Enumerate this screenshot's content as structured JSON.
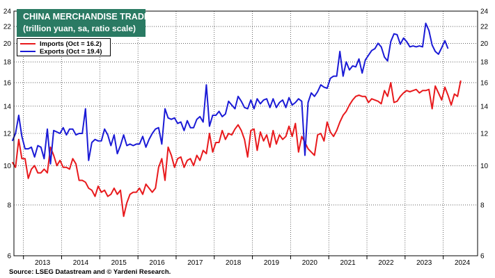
{
  "title": "CHINA MERCHANDISE TRADE",
  "subtitle": "(trillion yuan, sa, ratio scale)",
  "title_bg_color": "#2a7a63",
  "source": "Source: LSEG Datastream and © Yardeni Research.",
  "chart_data": {
    "type": "line",
    "title": "CHINA MERCHANDISE TRADE",
    "subtitle": "(trillion yuan, sa, ratio scale)",
    "y_scale": "log",
    "ylim": [
      6,
      24
    ],
    "y_ticks": [
      6,
      8,
      10,
      12,
      14,
      16,
      18,
      20,
      22,
      24
    ],
    "y_tick_labels": [
      "6",
      "8",
      "10",
      "12",
      "14",
      "16",
      "18",
      "20",
      "22",
      "24"
    ],
    "xlim": [
      2012.75,
      2024.9
    ],
    "x_ticks": [
      "2013",
      "2014",
      "2015",
      "2016",
      "2017",
      "2018",
      "2019",
      "2020",
      "2021",
      "2022",
      "2023",
      "2024"
    ],
    "grid": true,
    "legend_position": "top-left",
    "series": [
      {
        "name": "Imports  (Oct = 16.2)",
        "color": "#e8191c",
        "start_date": "2012-09",
        "values": [
          10.2,
          9.9,
          11.6,
          10.4,
          10.4,
          9.3,
          9.8,
          10.0,
          9.6,
          9.6,
          9.8,
          9.6,
          11.1,
          10.6,
          10.0,
          10.3,
          9.9,
          9.9,
          9.8,
          10.4,
          10.1,
          9.2,
          9.2,
          9.1,
          8.8,
          8.7,
          8.4,
          8.9,
          8.6,
          8.7,
          8.4,
          8.5,
          8.8,
          8.5,
          8.7,
          7.5,
          8.1,
          8.5,
          8.6,
          8.6,
          8.8,
          8.5,
          9.0,
          8.8,
          8.6,
          8.8,
          9.9,
          10.4,
          9.2,
          11.1,
          10.6,
          9.9,
          10.4,
          10.5,
          9.9,
          10.3,
          10.4,
          10.0,
          10.6,
          10.3,
          10.9,
          10.7,
          12.0,
          10.8,
          11.4,
          11.4,
          12.2,
          11.6,
          12.0,
          11.9,
          12.3,
          12.6,
          12.2,
          11.6,
          10.5,
          12.2,
          12.3,
          10.9,
          12.1,
          11.5,
          11.9,
          11.1,
          12.2,
          11.3,
          11.9,
          11.6,
          11.8,
          12.5,
          11.8,
          12.7,
          10.8,
          11.8,
          11.4,
          11.0,
          10.8,
          10.6,
          11.9,
          12.0,
          11.5,
          12.8,
          12.1,
          11.8,
          12.2,
          12.8,
          13.3,
          13.6,
          14.1,
          14.5,
          14.8,
          14.9,
          14.8,
          14.8,
          14.3,
          14.6,
          14.5,
          14.4,
          14.2,
          15.3,
          14.8,
          16.0,
          14.3,
          14.4,
          14.8,
          15.1,
          15.3,
          15.2,
          15.3,
          15.4,
          15.1,
          15.3,
          15.3,
          15.4,
          13.8,
          15.7,
          15.1,
          14.5,
          15.6,
          14.9,
          14.1,
          15.0,
          14.8,
          16.2
        ]
      },
      {
        "name": "Exports  (Oct = 19.4)",
        "color": "#1a1ad6",
        "start_date": "2012-09",
        "values": [
          11.5,
          12.0,
          13.3,
          11.8,
          11.0,
          11.0,
          11.1,
          10.5,
          11.2,
          11.1,
          10.4,
          12.3,
          10.1,
          12.2,
          12.1,
          12.0,
          12.4,
          11.9,
          12.3,
          12.3,
          11.9,
          12.0,
          12.0,
          13.8,
          10.3,
          11.4,
          11.6,
          11.5,
          11.5,
          12.3,
          11.9,
          11.2,
          11.9,
          10.7,
          11.2,
          11.9,
          11.2,
          11.3,
          11.2,
          11.3,
          11.3,
          11.8,
          11.1,
          11.6,
          12.0,
          12.3,
          12.4,
          11.3,
          13.8,
          13.1,
          13.0,
          13.1,
          12.7,
          12.8,
          12.2,
          12.9,
          12.4,
          12.4,
          13.0,
          13.2,
          12.8,
          15.8,
          12.5,
          13.3,
          13.3,
          13.6,
          13.2,
          13.4,
          14.4,
          14.1,
          13.8,
          14.8,
          14.4,
          13.9,
          13.8,
          14.5,
          13.8,
          14.6,
          14.2,
          14.5,
          14.6,
          13.9,
          14.6,
          13.9,
          14.3,
          14.5,
          13.9,
          14.7,
          14.1,
          14.3,
          14.6,
          14.4,
          10.6,
          14.3,
          15.1,
          14.8,
          15.2,
          15.8,
          15.6,
          15.5,
          16.4,
          16.6,
          16.6,
          19.1,
          16.6,
          18.0,
          17.2,
          17.6,
          17.5,
          18.3,
          16.9,
          18.2,
          18.7,
          19.2,
          19.4,
          20.0,
          19.6,
          18.5,
          18.1,
          20.2,
          21.1,
          21.0,
          19.9,
          20.6,
          20.2,
          19.6,
          19.7,
          19.6,
          19.7,
          19.6,
          22.4,
          21.5,
          19.8,
          19.1,
          18.8,
          19.5,
          20.3,
          19.4
        ]
      }
    ]
  }
}
